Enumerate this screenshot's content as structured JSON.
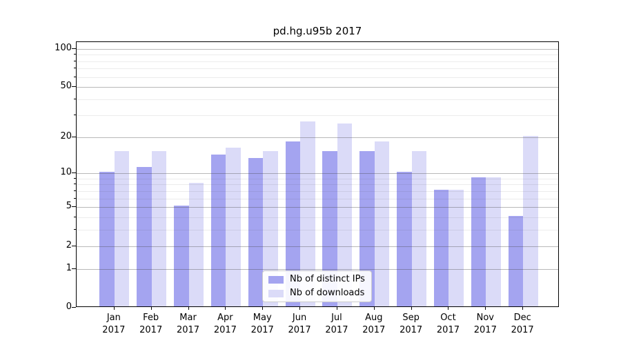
{
  "title": "pd.hg.u95b 2017",
  "chart_data": {
    "type": "bar",
    "title": "pd.hg.u95b 2017",
    "categories": [
      "Jan 2017",
      "Feb 2017",
      "Mar 2017",
      "Apr 2017",
      "May 2017",
      "Jun 2017",
      "Jul 2017",
      "Aug 2017",
      "Sep 2017",
      "Oct 2017",
      "Nov 2017",
      "Dec 2017"
    ],
    "series": [
      {
        "name": "Nb of distinct IPs",
        "color": "#a4a4f0",
        "values": [
          10,
          11,
          5,
          14,
          13,
          18,
          15,
          15,
          10,
          7,
          9,
          4
        ]
      },
      {
        "name": "Nb of downloads",
        "color": "#dbdbf8",
        "values": [
          15,
          15,
          8,
          16,
          15,
          26,
          25,
          18,
          15,
          7,
          9,
          20
        ]
      }
    ],
    "xlabel": "",
    "ylabel": "",
    "yscale": "log1p",
    "ylim": [
      0,
      113
    ],
    "yticks": [
      0,
      1,
      2,
      5,
      10,
      20,
      50,
      100
    ],
    "yticks_minor": [
      3,
      4,
      6,
      7,
      8,
      9,
      30,
      40,
      60,
      70,
      80,
      90
    ],
    "grid": true,
    "legend_position": "lower center"
  }
}
